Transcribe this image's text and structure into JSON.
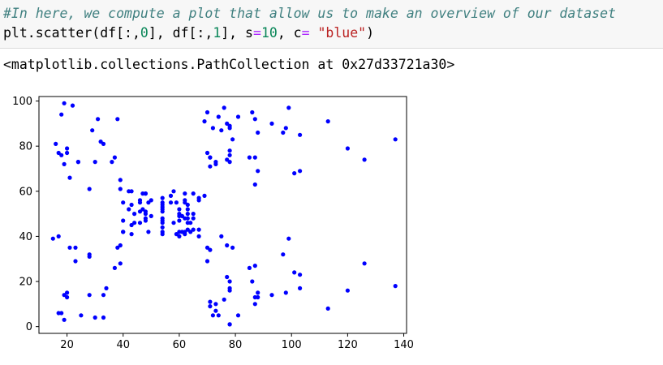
{
  "code_cell": {
    "comment": "#In here, we compute a plot that allow us to make an overview of our dataset",
    "code": {
      "fn": "plt.scatter(df[:,",
      "arg0": "0",
      "mid1": "], df[:,",
      "arg1": "1",
      "mid2": "], s",
      "eq1": "=",
      "size": "10",
      "mid3": ", c",
      "eq2": "=",
      "sp": " ",
      "color_str": "\"blue\"",
      "close": ")"
    }
  },
  "output": {
    "text": "<matplotlib.collections.PathCollection at 0x27d33721a30>"
  },
  "chart_data": {
    "type": "scatter",
    "marker_color": "#0000ff",
    "xlim": [
      10,
      141
    ],
    "ylim": [
      -3,
      102
    ],
    "x_ticks": [
      20,
      40,
      60,
      80,
      100,
      120,
      140
    ],
    "y_ticks": [
      0,
      20,
      40,
      60,
      80,
      100
    ],
    "grid": false,
    "points": [
      [
        15,
        39
      ],
      [
        16,
        81
      ],
      [
        17,
        6
      ],
      [
        17,
        40
      ],
      [
        17,
        77
      ],
      [
        18,
        6
      ],
      [
        18,
        76
      ],
      [
        18,
        94
      ],
      [
        19,
        3
      ],
      [
        19,
        14
      ],
      [
        19,
        72
      ],
      [
        19,
        99
      ],
      [
        20,
        15
      ],
      [
        20,
        77
      ],
      [
        20,
        79
      ],
      [
        20,
        13
      ],
      [
        21,
        35
      ],
      [
        21,
        66
      ],
      [
        22,
        98
      ],
      [
        23,
        29
      ],
      [
        23,
        35
      ],
      [
        24,
        73
      ],
      [
        24,
        73
      ],
      [
        25,
        5
      ],
      [
        28,
        14
      ],
      [
        28,
        32
      ],
      [
        28,
        61
      ],
      [
        28,
        31
      ],
      [
        29,
        87
      ],
      [
        30,
        4
      ],
      [
        30,
        73
      ],
      [
        31,
        92
      ],
      [
        32,
        82
      ],
      [
        33,
        4
      ],
      [
        33,
        14
      ],
      [
        33,
        81
      ],
      [
        34,
        17
      ],
      [
        36,
        73
      ],
      [
        37,
        26
      ],
      [
        37,
        75
      ],
      [
        38,
        35
      ],
      [
        38,
        92
      ],
      [
        39,
        28
      ],
      [
        39,
        36
      ],
      [
        39,
        61
      ],
      [
        39,
        65
      ],
      [
        40,
        55
      ],
      [
        40,
        47
      ],
      [
        40,
        42
      ],
      [
        40,
        42
      ],
      [
        42,
        52
      ],
      [
        42,
        60
      ],
      [
        43,
        54
      ],
      [
        43,
        60
      ],
      [
        43,
        45
      ],
      [
        43,
        41
      ],
      [
        44,
        50
      ],
      [
        44,
        46
      ],
      [
        46,
        51
      ],
      [
        46,
        46
      ],
      [
        46,
        56
      ],
      [
        46,
        55
      ],
      [
        47,
        52
      ],
      [
        47,
        59
      ],
      [
        48,
        51
      ],
      [
        48,
        59
      ],
      [
        48,
        50
      ],
      [
        48,
        48
      ],
      [
        48,
        59
      ],
      [
        48,
        47
      ],
      [
        49,
        55
      ],
      [
        49,
        42
      ],
      [
        50,
        49
      ],
      [
        50,
        56
      ],
      [
        54,
        47
      ],
      [
        54,
        54
      ],
      [
        54,
        53
      ],
      [
        54,
        48
      ],
      [
        54,
        52
      ],
      [
        54,
        42
      ],
      [
        54,
        51
      ],
      [
        54,
        55
      ],
      [
        54,
        41
      ],
      [
        54,
        44
      ],
      [
        54,
        57
      ],
      [
        54,
        46
      ],
      [
        57,
        58
      ],
      [
        57,
        55
      ],
      [
        58,
        60
      ],
      [
        58,
        46
      ],
      [
        59,
        55
      ],
      [
        59,
        41
      ],
      [
        60,
        49
      ],
      [
        60,
        40
      ],
      [
        60,
        42
      ],
      [
        60,
        52
      ],
      [
        60,
        47
      ],
      [
        60,
        50
      ],
      [
        61,
        42
      ],
      [
        61,
        49
      ],
      [
        62,
        41
      ],
      [
        62,
        48
      ],
      [
        62,
        59
      ],
      [
        62,
        55
      ],
      [
        62,
        56
      ],
      [
        62,
        42
      ],
      [
        63,
        50
      ],
      [
        63,
        46
      ],
      [
        63,
        43
      ],
      [
        63,
        48
      ],
      [
        63,
        52
      ],
      [
        63,
        54
      ],
      [
        64,
        42
      ],
      [
        64,
        46
      ],
      [
        65,
        48
      ],
      [
        65,
        50
      ],
      [
        65,
        43
      ],
      [
        65,
        59
      ],
      [
        67,
        43
      ],
      [
        67,
        57
      ],
      [
        67,
        56
      ],
      [
        67,
        40
      ],
      [
        69,
        58
      ],
      [
        69,
        91
      ],
      [
        70,
        29
      ],
      [
        70,
        77
      ],
      [
        70,
        35
      ],
      [
        70,
        95
      ],
      [
        71,
        11
      ],
      [
        71,
        75
      ],
      [
        71,
        9
      ],
      [
        71,
        75
      ],
      [
        71,
        34
      ],
      [
        71,
        71
      ],
      [
        72,
        5
      ],
      [
        72,
        88
      ],
      [
        73,
        7
      ],
      [
        73,
        73
      ],
      [
        73,
        10
      ],
      [
        73,
        72
      ],
      [
        74,
        5
      ],
      [
        74,
        93
      ],
      [
        75,
        40
      ],
      [
        75,
        87
      ],
      [
        76,
        12
      ],
      [
        76,
        97
      ],
      [
        77,
        36
      ],
      [
        77,
        74
      ],
      [
        77,
        22
      ],
      [
        77,
        90
      ],
      [
        78,
        17
      ],
      [
        78,
        88
      ],
      [
        78,
        20
      ],
      [
        78,
        76
      ],
      [
        78,
        16
      ],
      [
        78,
        89
      ],
      [
        78,
        1
      ],
      [
        78,
        78
      ],
      [
        78,
        1
      ],
      [
        78,
        73
      ],
      [
        79,
        35
      ],
      [
        79,
        83
      ],
      [
        81,
        5
      ],
      [
        81,
        93
      ],
      [
        85,
        26
      ],
      [
        85,
        75
      ],
      [
        86,
        20
      ],
      [
        86,
        95
      ],
      [
        87,
        27
      ],
      [
        87,
        63
      ],
      [
        87,
        13
      ],
      [
        87,
        75
      ],
      [
        87,
        10
      ],
      [
        87,
        92
      ],
      [
        88,
        13
      ],
      [
        88,
        86
      ],
      [
        88,
        15
      ],
      [
        88,
        69
      ],
      [
        93,
        14
      ],
      [
        93,
        90
      ],
      [
        97,
        32
      ],
      [
        97,
        86
      ],
      [
        98,
        15
      ],
      [
        98,
        88
      ],
      [
        99,
        39
      ],
      [
        99,
        97
      ],
      [
        101,
        24
      ],
      [
        101,
        68
      ],
      [
        103,
        17
      ],
      [
        103,
        85
      ],
      [
        103,
        23
      ],
      [
        103,
        69
      ],
      [
        113,
        8
      ],
      [
        113,
        91
      ],
      [
        120,
        16
      ],
      [
        120,
        79
      ],
      [
        126,
        28
      ],
      [
        126,
        74
      ],
      [
        137,
        18
      ],
      [
        137,
        83
      ]
    ]
  }
}
